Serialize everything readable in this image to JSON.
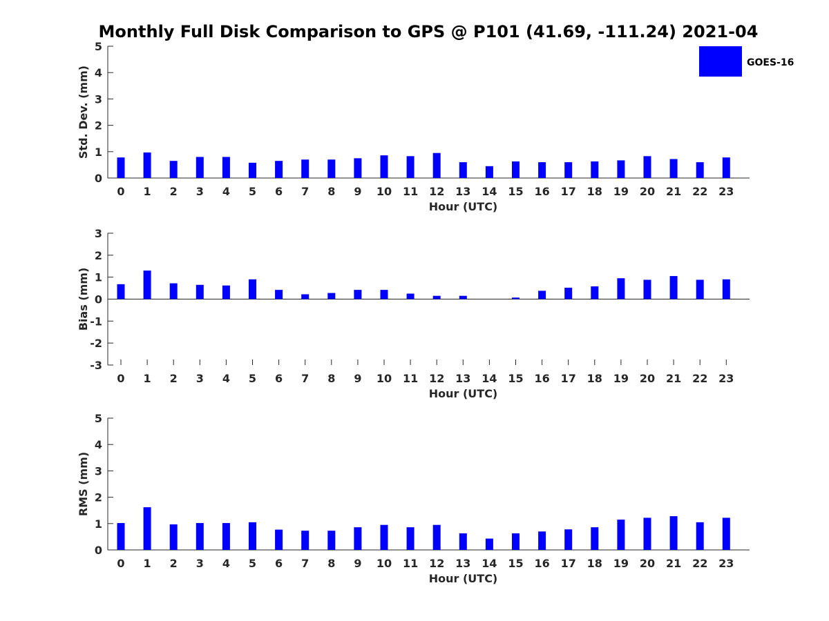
{
  "title": "Monthly Full Disk Comparison to GPS @ P101 (41.69, -111.24) 2021-04",
  "legend": {
    "label": "GOES-16",
    "color": "#0000ff",
    "placement": "top-right"
  },
  "chart_data": [
    {
      "type": "bar",
      "categories": [
        "0",
        "1",
        "2",
        "3",
        "4",
        "5",
        "6",
        "7",
        "8",
        "9",
        "10",
        "11",
        "12",
        "13",
        "14",
        "15",
        "16",
        "17",
        "18",
        "19",
        "20",
        "21",
        "22",
        "23"
      ],
      "xlabel": "Hour (UTC)",
      "ylabel": "Std. Dev. (mm)",
      "ylim": [
        0,
        5
      ],
      "yticks": [
        0,
        1,
        2,
        3,
        4,
        5
      ],
      "series": [
        {
          "name": "GOES-16",
          "color": "#0000ff",
          "values": [
            0.78,
            0.97,
            0.65,
            0.8,
            0.8,
            0.58,
            0.65,
            0.7,
            0.7,
            0.75,
            0.86,
            0.83,
            0.95,
            0.6,
            0.45,
            0.63,
            0.6,
            0.6,
            0.63,
            0.67,
            0.83,
            0.72,
            0.6,
            0.78
          ]
        }
      ]
    },
    {
      "type": "bar",
      "categories": [
        "0",
        "1",
        "2",
        "3",
        "4",
        "5",
        "6",
        "7",
        "8",
        "9",
        "10",
        "11",
        "12",
        "13",
        "14",
        "15",
        "16",
        "17",
        "18",
        "19",
        "20",
        "21",
        "22",
        "23"
      ],
      "xlabel": "Hour (UTC)",
      "ylabel": "Bias (mm)",
      "ylim": [
        -3,
        3
      ],
      "yticks": [
        -3,
        -2,
        -1,
        0,
        1,
        2,
        3
      ],
      "series": [
        {
          "name": "GOES-16",
          "color": "#0000ff",
          "values": [
            0.68,
            1.3,
            0.72,
            0.65,
            0.62,
            0.9,
            0.42,
            0.22,
            0.28,
            0.42,
            0.42,
            0.25,
            0.15,
            0.15,
            0.0,
            0.07,
            0.38,
            0.52,
            0.58,
            0.95,
            0.88,
            1.05,
            0.88,
            0.9
          ]
        }
      ]
    },
    {
      "type": "bar",
      "categories": [
        "0",
        "1",
        "2",
        "3",
        "4",
        "5",
        "6",
        "7",
        "8",
        "9",
        "10",
        "11",
        "12",
        "13",
        "14",
        "15",
        "16",
        "17",
        "18",
        "19",
        "20",
        "21",
        "22",
        "23"
      ],
      "xlabel": "Hour (UTC)",
      "ylabel": "RMS (mm)",
      "ylim": [
        0,
        5
      ],
      "yticks": [
        0,
        1,
        2,
        3,
        4,
        5
      ],
      "series": [
        {
          "name": "GOES-16",
          "color": "#0000ff",
          "values": [
            1.02,
            1.62,
            0.97,
            1.02,
            1.02,
            1.05,
            0.77,
            0.73,
            0.73,
            0.86,
            0.95,
            0.86,
            0.95,
            0.63,
            0.43,
            0.63,
            0.7,
            0.78,
            0.86,
            1.15,
            1.22,
            1.28,
            1.05,
            1.22
          ]
        }
      ]
    }
  ]
}
